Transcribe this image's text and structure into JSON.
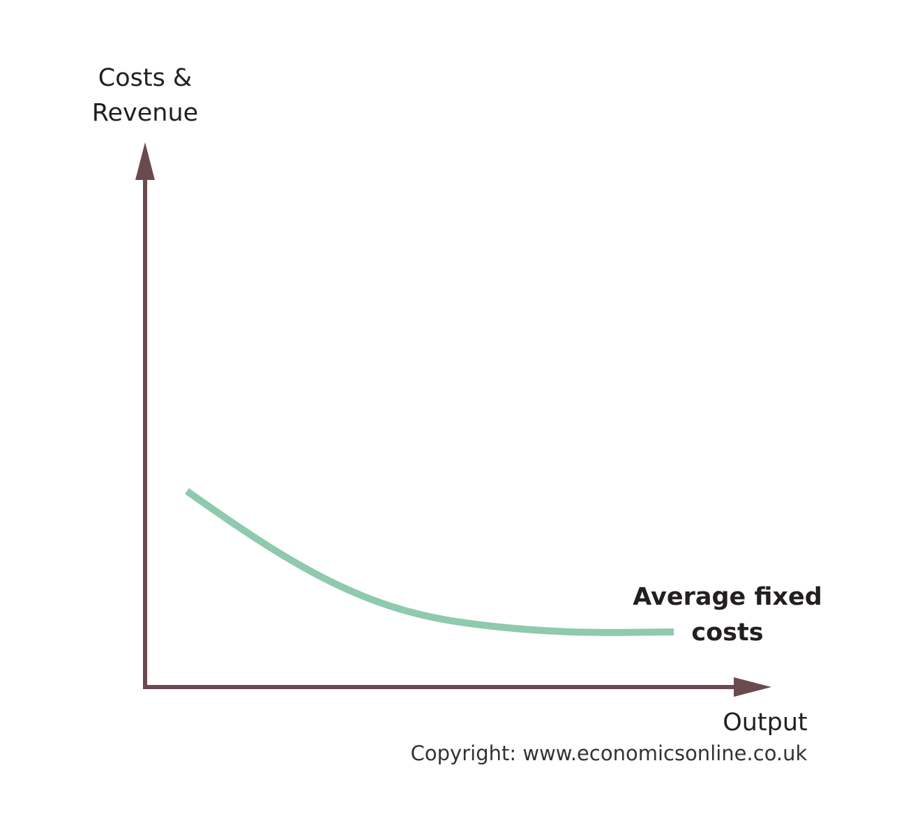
{
  "y_axis_label": [
    "Costs &",
    "Revenue"
  ],
  "x_axis_label": "Output",
  "curve_label": [
    "Average fixed",
    "costs"
  ],
  "copyright": "Copyright: www.economicsonline.co.uk"
}
